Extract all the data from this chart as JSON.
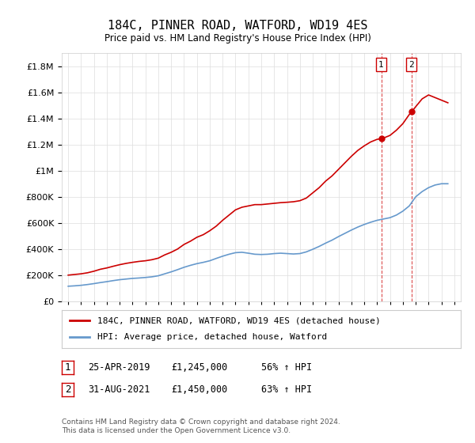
{
  "title": "184C, PINNER ROAD, WATFORD, WD19 4ES",
  "subtitle": "Price paid vs. HM Land Registry's House Price Index (HPI)",
  "legend_label_red": "184C, PINNER ROAD, WATFORD, WD19 4ES (detached house)",
  "legend_label_blue": "HPI: Average price, detached house, Watford",
  "footer": "Contains HM Land Registry data © Crown copyright and database right 2024.\nThis data is licensed under the Open Government Licence v3.0.",
  "transaction1": {
    "label": "1",
    "date": "25-APR-2019",
    "price": "£1,245,000",
    "hpi": "56% ↑ HPI"
  },
  "transaction2": {
    "label": "2",
    "date": "31-AUG-2021",
    "price": "£1,450,000",
    "hpi": "63% ↑ HPI"
  },
  "marker1_x": 2019.32,
  "marker1_y": 1245000,
  "marker2_x": 2021.67,
  "marker2_y": 1450000,
  "vline1_x": 2019.32,
  "vline2_x": 2021.67,
  "red_color": "#cc0000",
  "blue_color": "#6699cc",
  "marker_box_color": "#cc0000",
  "ylim": [
    0,
    1900000
  ],
  "xlim": [
    1994.5,
    2025.5
  ],
  "yticks": [
    0,
    200000,
    400000,
    600000,
    800000,
    1000000,
    1200000,
    1400000,
    1600000,
    1800000
  ],
  "xticks": [
    1995,
    1996,
    1997,
    1998,
    1999,
    2000,
    2001,
    2002,
    2003,
    2004,
    2005,
    2006,
    2007,
    2008,
    2009,
    2010,
    2011,
    2012,
    2013,
    2014,
    2015,
    2016,
    2017,
    2018,
    2019,
    2020,
    2021,
    2022,
    2023,
    2024,
    2025
  ],
  "red_x": [
    1995.0,
    1995.5,
    1996.0,
    1996.5,
    1997.0,
    1997.5,
    1998.0,
    1998.5,
    1999.0,
    1999.5,
    2000.0,
    2000.5,
    2001.0,
    2001.5,
    2002.0,
    2002.5,
    2003.0,
    2003.5,
    2004.0,
    2004.5,
    2005.0,
    2005.5,
    2006.0,
    2006.5,
    2007.0,
    2007.5,
    2008.0,
    2008.5,
    2009.0,
    2009.5,
    2010.0,
    2010.5,
    2011.0,
    2011.5,
    2012.0,
    2012.5,
    2013.0,
    2013.5,
    2014.0,
    2014.5,
    2015.0,
    2015.5,
    2016.0,
    2016.5,
    2017.0,
    2017.5,
    2018.0,
    2018.5,
    2019.0,
    2019.32,
    2019.5,
    2020.0,
    2020.5,
    2021.0,
    2021.5,
    2021.67,
    2022.0,
    2022.5,
    2023.0,
    2023.5,
    2024.0,
    2024.5
  ],
  "red_y": [
    200000,
    205000,
    210000,
    218000,
    230000,
    245000,
    255000,
    268000,
    280000,
    290000,
    298000,
    305000,
    310000,
    318000,
    330000,
    355000,
    375000,
    400000,
    435000,
    460000,
    490000,
    510000,
    540000,
    575000,
    620000,
    660000,
    700000,
    720000,
    730000,
    740000,
    740000,
    745000,
    750000,
    755000,
    758000,
    762000,
    770000,
    790000,
    830000,
    870000,
    920000,
    960000,
    1010000,
    1060000,
    1110000,
    1155000,
    1190000,
    1220000,
    1240000,
    1245000,
    1250000,
    1270000,
    1310000,
    1360000,
    1430000,
    1450000,
    1490000,
    1550000,
    1580000,
    1560000,
    1540000,
    1520000
  ],
  "blue_x": [
    1995.0,
    1995.5,
    1996.0,
    1996.5,
    1997.0,
    1997.5,
    1998.0,
    1998.5,
    1999.0,
    1999.5,
    2000.0,
    2000.5,
    2001.0,
    2001.5,
    2002.0,
    2002.5,
    2003.0,
    2003.5,
    2004.0,
    2004.5,
    2005.0,
    2005.5,
    2006.0,
    2006.5,
    2007.0,
    2007.5,
    2008.0,
    2008.5,
    2009.0,
    2009.5,
    2010.0,
    2010.5,
    2011.0,
    2011.5,
    2012.0,
    2012.5,
    2013.0,
    2013.5,
    2014.0,
    2014.5,
    2015.0,
    2015.5,
    2016.0,
    2016.5,
    2017.0,
    2017.5,
    2018.0,
    2018.5,
    2019.0,
    2019.5,
    2020.0,
    2020.5,
    2021.0,
    2021.5,
    2022.0,
    2022.5,
    2023.0,
    2023.5,
    2024.0,
    2024.5
  ],
  "blue_y": [
    115000,
    118000,
    122000,
    128000,
    135000,
    143000,
    150000,
    158000,
    165000,
    170000,
    175000,
    178000,
    182000,
    187000,
    195000,
    210000,
    225000,
    242000,
    260000,
    275000,
    288000,
    298000,
    310000,
    328000,
    345000,
    360000,
    372000,
    375000,
    368000,
    360000,
    358000,
    360000,
    365000,
    368000,
    365000,
    362000,
    365000,
    378000,
    398000,
    420000,
    445000,
    468000,
    495000,
    520000,
    545000,
    568000,
    588000,
    605000,
    620000,
    630000,
    640000,
    660000,
    690000,
    730000,
    800000,
    840000,
    870000,
    890000,
    900000,
    900000
  ]
}
